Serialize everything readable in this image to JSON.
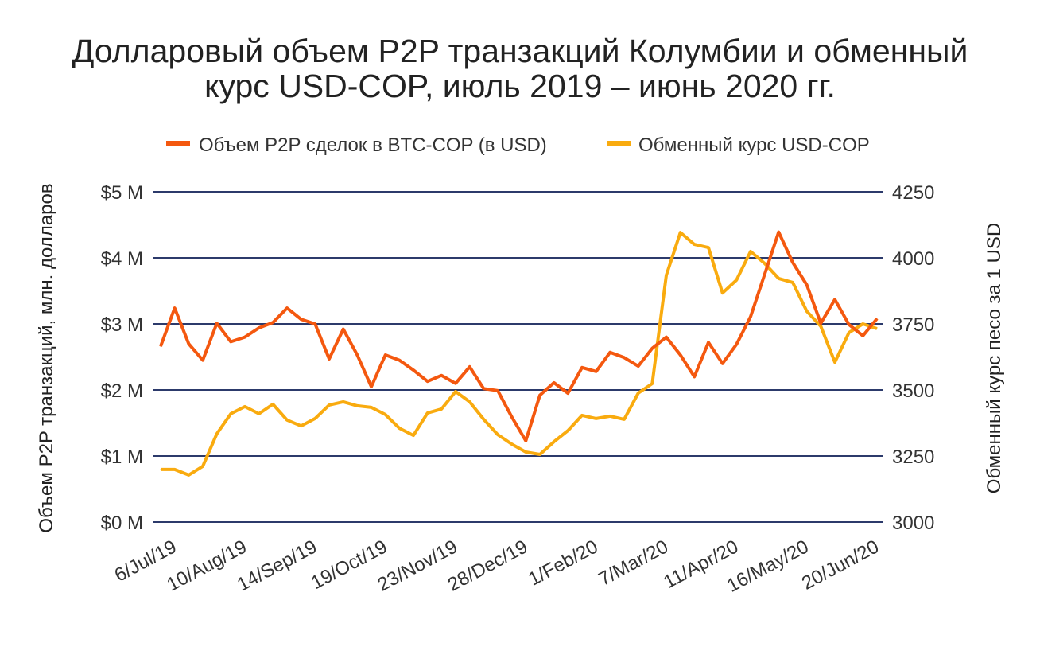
{
  "chart_data": {
    "type": "line",
    "title_line1": "Долларовый объем P2P транзакций Колумбии и обменный",
    "title_line2": "курс USD-COP, июль 2019 – июнь 2020 гг.",
    "ylabel_left": "Объем P2P транзакций, млн. долларов",
    "ylabel_right": "Обменный курс песо за 1 USD",
    "y_left_range": [
      0,
      5
    ],
    "y_left_ticks": [
      {
        "value": 0,
        "label": "$0 M"
      },
      {
        "value": 1,
        "label": "$1 M"
      },
      {
        "value": 2,
        "label": "$2 M"
      },
      {
        "value": 3,
        "label": "$3 M"
      },
      {
        "value": 4,
        "label": "$4 M"
      },
      {
        "value": 5,
        "label": "$5 M"
      }
    ],
    "y_right_range": [
      3000,
      4250
    ],
    "y_right_ticks": [
      "3000",
      "3250",
      "3500",
      "3750",
      "4000",
      "4250"
    ],
    "x_tick_labels": [
      {
        "index": 1,
        "label": "6/Jul/19"
      },
      {
        "index": 6,
        "label": "10/Aug/19"
      },
      {
        "index": 11,
        "label": "14/Sep/19"
      },
      {
        "index": 16,
        "label": "19/Oct/19"
      },
      {
        "index": 21,
        "label": "23/Nov/19"
      },
      {
        "index": 26,
        "label": "28/Dec/19"
      },
      {
        "index": 31,
        "label": "1/Feb/20"
      },
      {
        "index": 36,
        "label": "7/Mar/20"
      },
      {
        "index": 41,
        "label": "11/Apr/20"
      },
      {
        "index": 46,
        "label": "16/May/20"
      },
      {
        "index": 51,
        "label": "20/Jun/20"
      }
    ],
    "grid": true,
    "legend_position": "top",
    "series": [
      {
        "name": "Объем P2P сделок в BTC-COP (в USD)",
        "axis": "left",
        "color": "#f4580f",
        "values": [
          2.66,
          3.24,
          2.7,
          2.45,
          3.01,
          2.73,
          2.8,
          2.94,
          3.02,
          3.24,
          3.07,
          3.0,
          2.47,
          2.92,
          2.53,
          2.05,
          2.53,
          2.45,
          2.3,
          2.13,
          2.22,
          2.1,
          2.35,
          2.02,
          1.99,
          1.59,
          1.23,
          1.92,
          2.11,
          1.95,
          2.34,
          2.28,
          2.57,
          2.49,
          2.36,
          2.63,
          2.8,
          2.53,
          2.2,
          2.72,
          2.4,
          2.69,
          3.11,
          3.75,
          4.39,
          3.93,
          3.59,
          3.01,
          3.37,
          2.99,
          2.82,
          3.08
        ]
      },
      {
        "name": "Обменный курс USD-COP",
        "axis": "right",
        "color": "#f9ab0f",
        "values": [
          3199,
          3199,
          3178,
          3211,
          3334,
          3410,
          3437,
          3410,
          3446,
          3386,
          3364,
          3392,
          3443,
          3455,
          3440,
          3434,
          3407,
          3355,
          3328,
          3413,
          3428,
          3494,
          3455,
          3389,
          3331,
          3295,
          3265,
          3256,
          3304,
          3346,
          3404,
          3392,
          3401,
          3389,
          3488,
          3524,
          3934,
          4096,
          4051,
          4039,
          3867,
          3916,
          4024,
          3979,
          3922,
          3907,
          3798,
          3741,
          3605,
          3717,
          3750,
          3732
        ]
      }
    ],
    "grid_color": "#2c3a6b"
  }
}
